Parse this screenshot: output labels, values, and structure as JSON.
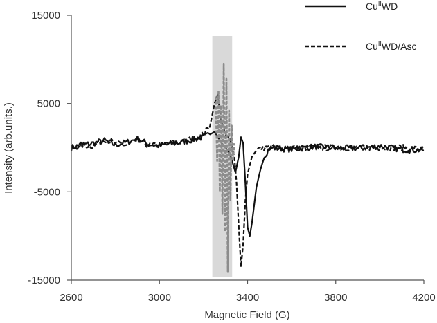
{
  "chart_data": {
    "type": "line",
    "title": "",
    "xlabel": "Magnetic Field (G)",
    "ylabel": "Intensity (arb.units.)",
    "xlim": [
      2600,
      4200
    ],
    "ylim": [
      -15000,
      15000
    ],
    "xticks": [
      "2600",
      "3000",
      "3400",
      "3800",
      "4200"
    ],
    "yticks": [
      "15000",
      "5000",
      "-5000",
      "-15000"
    ],
    "ytick_values": [
      15000,
      5000,
      -5000,
      -15000
    ],
    "xtick_values": [
      2600,
      3000,
      3400,
      3800,
      4200
    ],
    "grid": false,
    "legend_position": "top-right",
    "highlight_region": {
      "x": [
        3240,
        3330
      ],
      "color": "#d9d9d9"
    },
    "series": [
      {
        "name": "CuIIWD",
        "style": "solid",
        "color": "#111111",
        "x": [
          2600,
          2650,
          2700,
          2750,
          2800,
          2850,
          2900,
          2950,
          3000,
          3050,
          3100,
          3150,
          3200,
          3230,
          3250,
          3270,
          3290,
          3300,
          3315,
          3330,
          3345,
          3360,
          3370,
          3380,
          3390,
          3400,
          3410,
          3420,
          3440,
          3470,
          3500,
          3600,
          3700,
          3800,
          3900,
          4000,
          4100,
          4200
        ],
        "y": [
          0,
          300,
          500,
          800,
          300,
          600,
          1000,
          400,
          200,
          400,
          600,
          900,
          1200,
          1500,
          1800,
          1000,
          200,
          0,
          -500,
          -1500,
          -2800,
          -1000,
          1200,
          500,
          -4000,
          -9000,
          -10000,
          -8500,
          -4500,
          -1200,
          0,
          -200,
          100,
          0,
          -100,
          200,
          -200,
          -300
        ]
      },
      {
        "name": "CuIIWD/Asc",
        "style": "dashed",
        "color": "#111111",
        "x": [
          2600,
          2650,
          2700,
          2750,
          2800,
          2850,
          2900,
          2950,
          3000,
          3050,
          3100,
          3150,
          3200,
          3230,
          3250,
          3265,
          3280,
          3300,
          3320,
          3340,
          3350,
          3360,
          3370,
          3380,
          3390,
          3400,
          3420,
          3450,
          3500,
          3600,
          3700,
          3800,
          3900,
          4000,
          4100,
          4200
        ],
        "y": [
          0,
          300,
          200,
          1000,
          500,
          300,
          800,
          200,
          300,
          500,
          700,
          1000,
          1500,
          2500,
          5000,
          6000,
          3000,
          1500,
          1000,
          -1000,
          -4000,
          -9000,
          -13500,
          -11000,
          -6000,
          -3000,
          -1000,
          0,
          0,
          0,
          0,
          0,
          0,
          0,
          0,
          -200
        ]
      },
      {
        "name": "",
        "style": "dashed",
        "color": "#8c8c8c",
        "x": [
          3255,
          3262,
          3268,
          3274,
          3280,
          3286,
          3292,
          3298,
          3304,
          3310,
          3316,
          3322,
          3328,
          3334,
          3340
        ],
        "y": [
          5800,
          -1500,
          6500,
          -5000,
          4800,
          -7500,
          9500,
          -9500,
          7800,
          -14000,
          4200,
          -6000,
          2500,
          -1500,
          500
        ]
      }
    ]
  },
  "legend": {
    "items": [
      {
        "label": "CuIIWD",
        "base": "Cu",
        "sup": "II",
        "tail": "WD",
        "style": "solid"
      },
      {
        "label": "CuIIWD/Asc",
        "base": "Cu",
        "sup": "II",
        "tail": "WD/Asc",
        "style": "dashed"
      }
    ]
  }
}
